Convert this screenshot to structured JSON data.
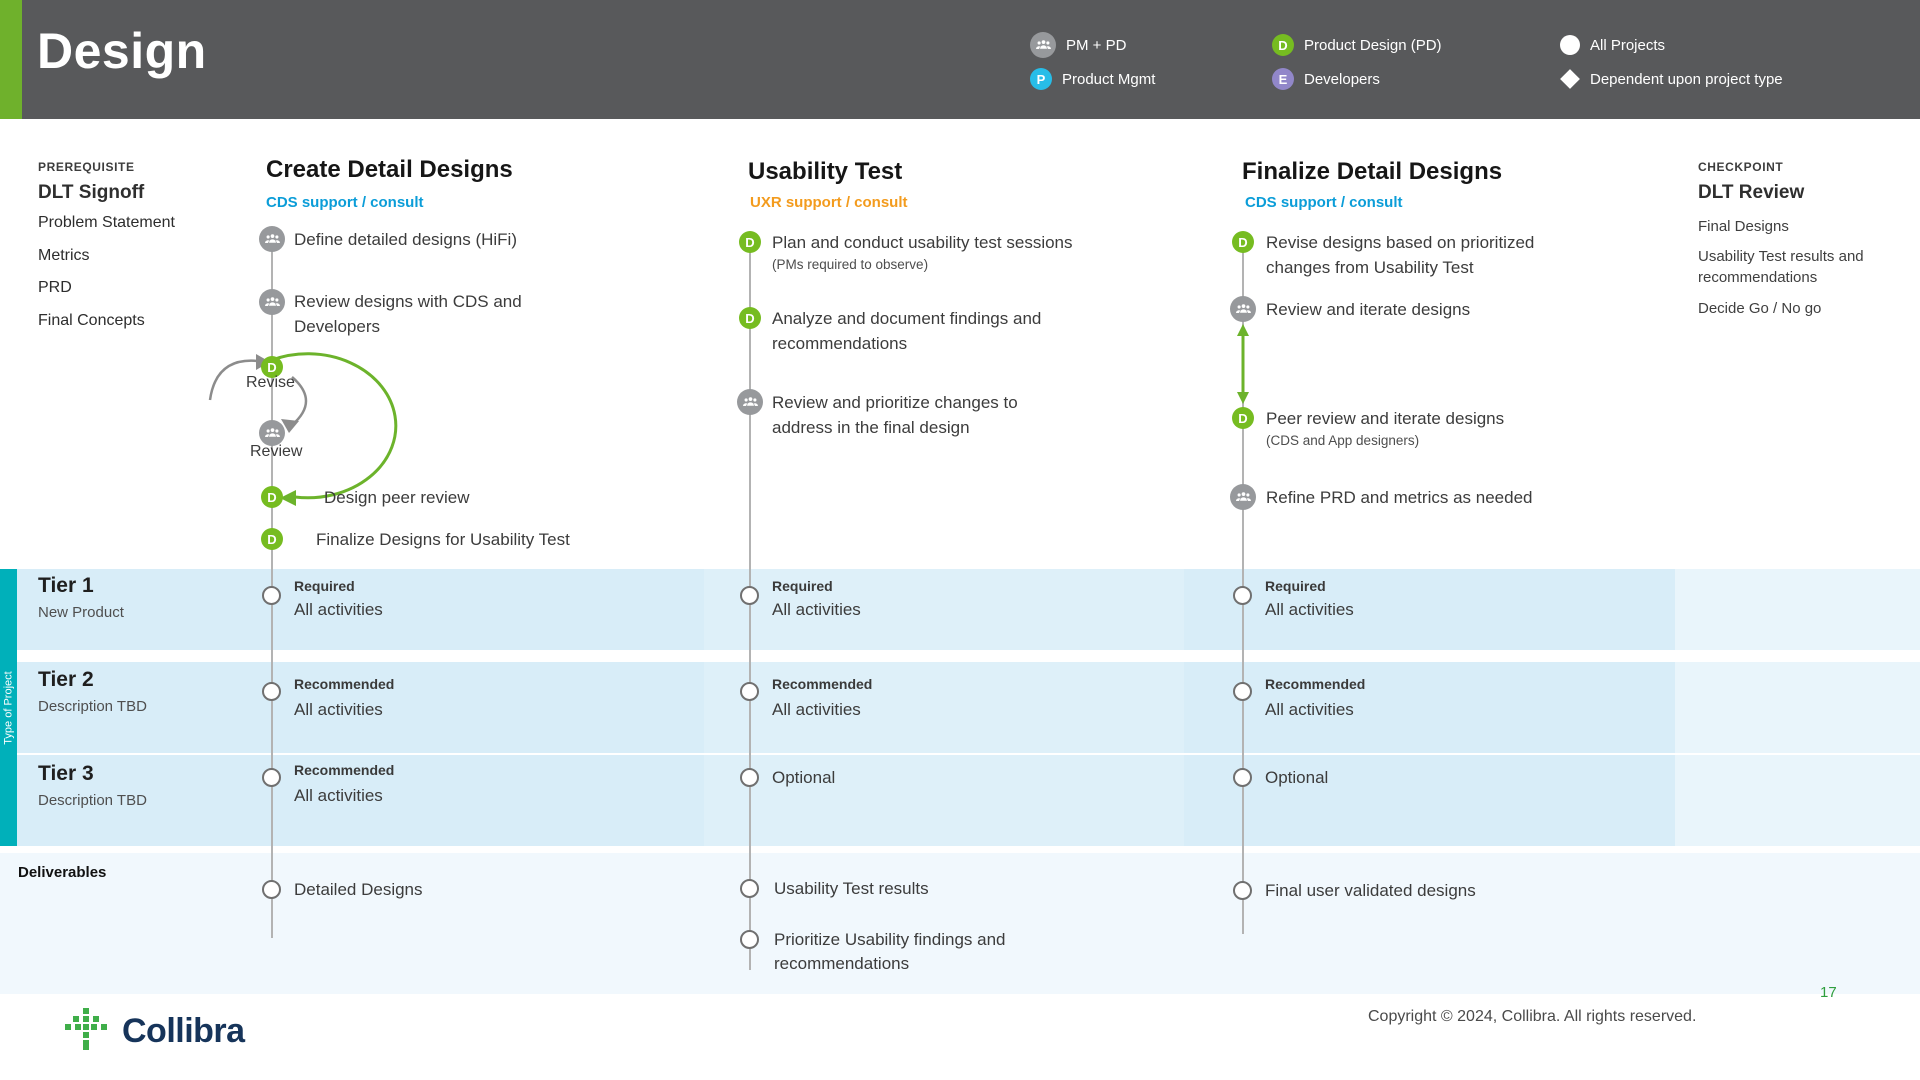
{
  "header": {
    "title": "Design",
    "legend": [
      {
        "icon": "people-icon",
        "label": "PM + PD"
      },
      {
        "icon": "product-mgmt-icon",
        "label": "Product Mgmt"
      },
      {
        "icon": "product-design-icon",
        "label": "Product Design (PD)"
      },
      {
        "icon": "developers-icon",
        "label": "Developers"
      },
      {
        "icon": "all-projects-icon",
        "label": "All Projects"
      },
      {
        "icon": "dependent-icon",
        "label": "Dependent upon project type"
      }
    ]
  },
  "icon_letters": {
    "D": "D",
    "P": "P",
    "E": "E"
  },
  "prerequisite": {
    "label": "PREREQUISITE",
    "title": "DLT Signoff",
    "items": [
      "Problem Statement",
      "Metrics",
      "PRD",
      "Final Concepts"
    ]
  },
  "checkpoint": {
    "label": "CHECKPOINT",
    "title": "DLT Review",
    "items": [
      "Final Designs",
      "Usability Test results and recommendations",
      "Decide Go / No go"
    ]
  },
  "columns": [
    {
      "title": "Create Detail Designs",
      "subtitle": "CDS support / consult",
      "steps": {
        "define": "Define detailed designs (HiFi)",
        "review_cds": "Review designs with CDS and Developers",
        "revise_label": "Revise",
        "review_label": "Review",
        "peer_review": "Design peer review",
        "finalize": "Finalize Designs for Usability Test"
      }
    },
    {
      "title": "Usability Test",
      "subtitle": "UXR support / consult",
      "steps": {
        "plan": "Plan and conduct usability test sessions",
        "plan_note": "(PMs required to observe)",
        "analyze": "Analyze and document findings and recommendations",
        "prioritize": "Review and prioritize changes to address in the final design"
      }
    },
    {
      "title": "Finalize Detail Designs",
      "subtitle": "CDS support / consult",
      "steps": {
        "revise": "Revise designs based on prioritized changes from Usability Test",
        "iterate": "Review and iterate designs",
        "peer": "Peer review and iterate designs",
        "peer_note": "(CDS and App designers)",
        "refine": "Refine PRD and metrics as needed"
      }
    }
  ],
  "tiers": {
    "sidebar_label": "Type of Project",
    "rows": [
      {
        "name": "Tier 1",
        "desc": "New Product",
        "cells": [
          {
            "level": "Required",
            "detail": "All activities"
          },
          {
            "level": "Required",
            "detail": "All activities"
          },
          {
            "level": "Required",
            "detail": "All activities"
          }
        ]
      },
      {
        "name": "Tier 2",
        "desc": "Description TBD",
        "cells": [
          {
            "level": "Recommended",
            "detail": "All activities"
          },
          {
            "level": "Recommended",
            "detail": "All activities"
          },
          {
            "level": "Recommended",
            "detail": "All activities"
          }
        ]
      },
      {
        "name": "Tier 3",
        "desc": "Description TBD",
        "cells": [
          {
            "level": "Recommended",
            "detail": "All activities"
          },
          {
            "level": "Optional",
            "detail": ""
          },
          {
            "level": "Optional",
            "detail": ""
          }
        ]
      }
    ]
  },
  "deliverables": {
    "label": "Deliverables",
    "columns": [
      [
        "Detailed Designs"
      ],
      [
        "Usability Test results",
        "Prioritize Usability findings and recommendations"
      ],
      [
        "Final user validated designs"
      ]
    ]
  },
  "footer": {
    "brand": "Collibra",
    "copyright": "Copyright © 2024, Collibra. All rights reserved.",
    "page_number": "17"
  },
  "colors": {
    "header_bg": "#58595b",
    "accent_green": "#6fb12c",
    "badge_green": "#76bc21",
    "badge_cyan": "#27bde8",
    "badge_purple": "#9187c9",
    "badge_gray": "#97999c",
    "cds_blue": "#0b9dd8",
    "uxr_orange": "#f39b1d",
    "tier_band_blue": "#d8edf8",
    "type_bar_teal": "#00b0ba",
    "page_number_green": "#2f9e3e"
  }
}
